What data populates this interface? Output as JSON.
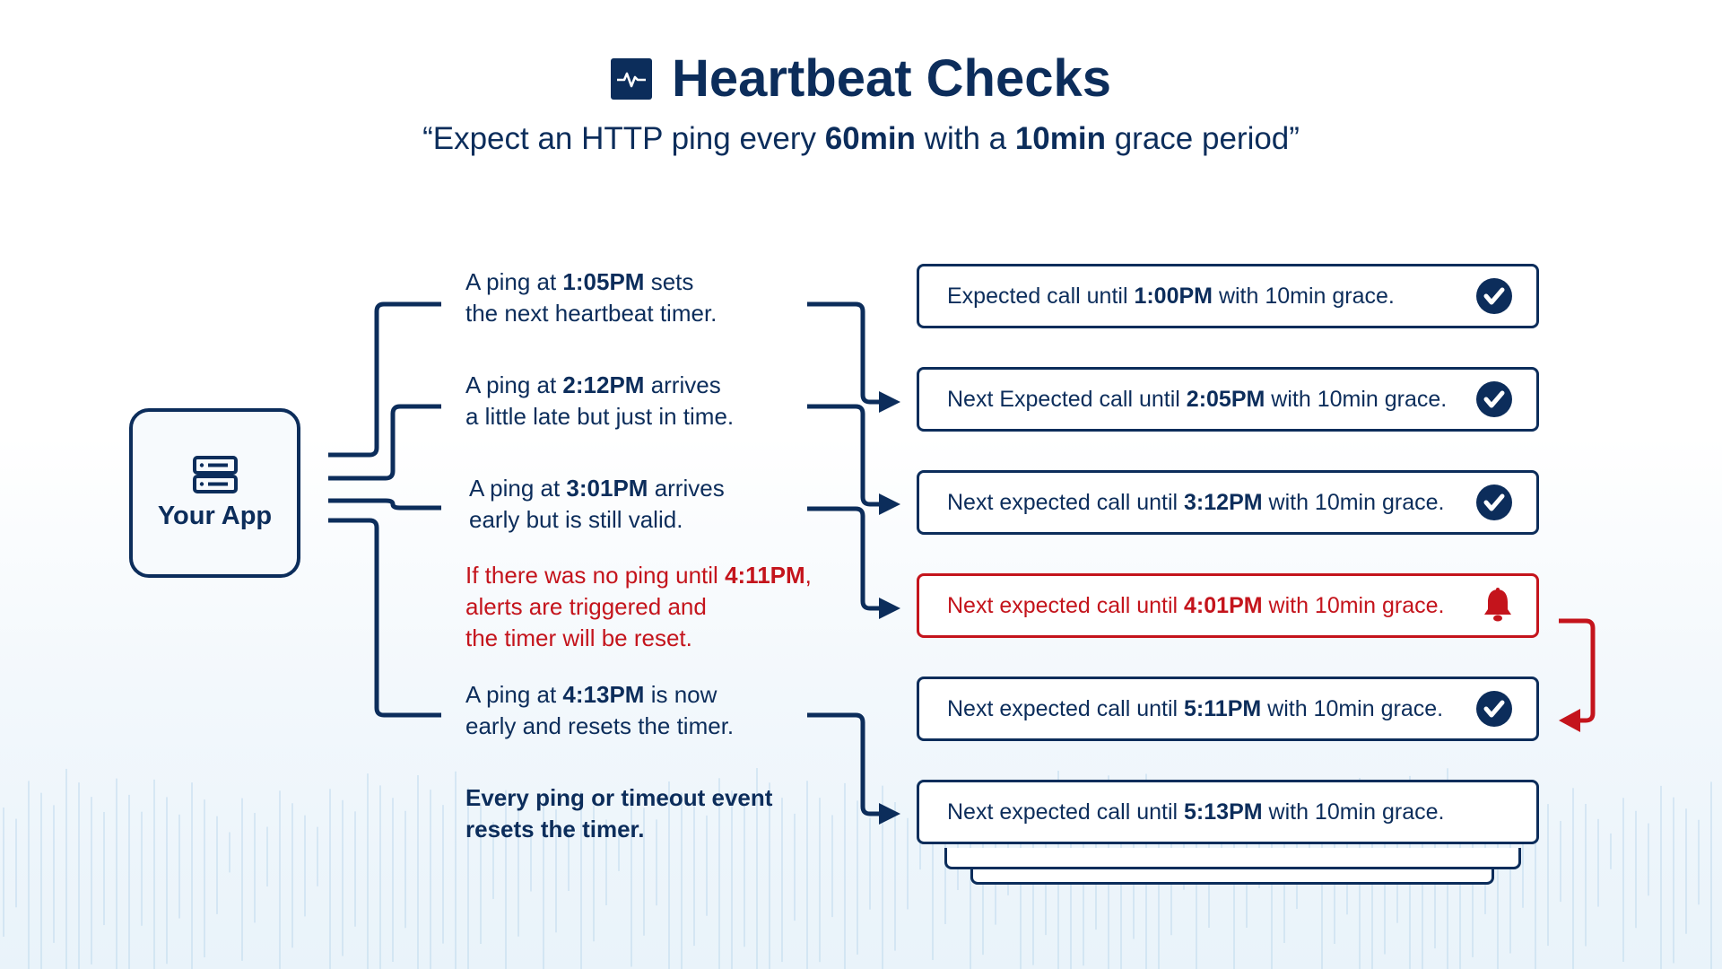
{
  "header": {
    "title": "Heartbeat Checks",
    "icon": "heartbeat-pulse-icon",
    "subtitle": {
      "pre": "“Expect an HTTP ping every ",
      "b1": "60min",
      "mid": " with a ",
      "b2": "10min",
      "post": " grace period”"
    }
  },
  "app": {
    "label": "Your App",
    "icon": "server-icon"
  },
  "steps": [
    {
      "pre": "A ping at ",
      "bold": "1:05PM",
      "post": " sets",
      "line2": "the next heartbeat timer."
    },
    {
      "pre": "A ping at ",
      "bold": "2:12PM",
      "post": " arrives",
      "line2": "a little late but just in time."
    },
    {
      "pre": "A ping at ",
      "bold": "3:01PM",
      "post": " arrives",
      "line2": "early but is still valid."
    },
    {
      "pre": "If there was no ping until ",
      "bold": "4:11PM",
      "post": ",",
      "line2": "alerts are triggered and",
      "line3": "the timer will be reset."
    },
    {
      "pre": "A ping at ",
      "bold": "4:13PM",
      "post": " is now",
      "line2": "early and resets the timer."
    },
    {
      "line1": "Every ping or timeout event",
      "line2": "resets the timer."
    }
  ],
  "boxes": [
    {
      "pre": "Expected call until ",
      "bold": "1:00PM",
      "post": " with 10min grace.",
      "status": "check-circle-icon"
    },
    {
      "pre": "Next Expected call until ",
      "bold": "2:05PM",
      "post": " with 10min grace.",
      "status": "check-circle-icon"
    },
    {
      "pre": "Next expected call until ",
      "bold": "3:12PM",
      "post": " with 10min grace.",
      "status": "check-circle-icon"
    },
    {
      "pre": "Next expected call until ",
      "bold": "4:01PM",
      "post": " with 10min grace.",
      "status": "bell-icon"
    },
    {
      "pre": "Next expected call until ",
      "bold": "5:11PM",
      "post": " with 10min grace.",
      "status": "check-circle-icon"
    },
    {
      "pre": "Next expected call until ",
      "bold": "5:13PM",
      "post": " with 10min grace.",
      "status": ""
    }
  ],
  "colors": {
    "navy": "#0c2d5b",
    "alert_red": "#c4141c"
  }
}
